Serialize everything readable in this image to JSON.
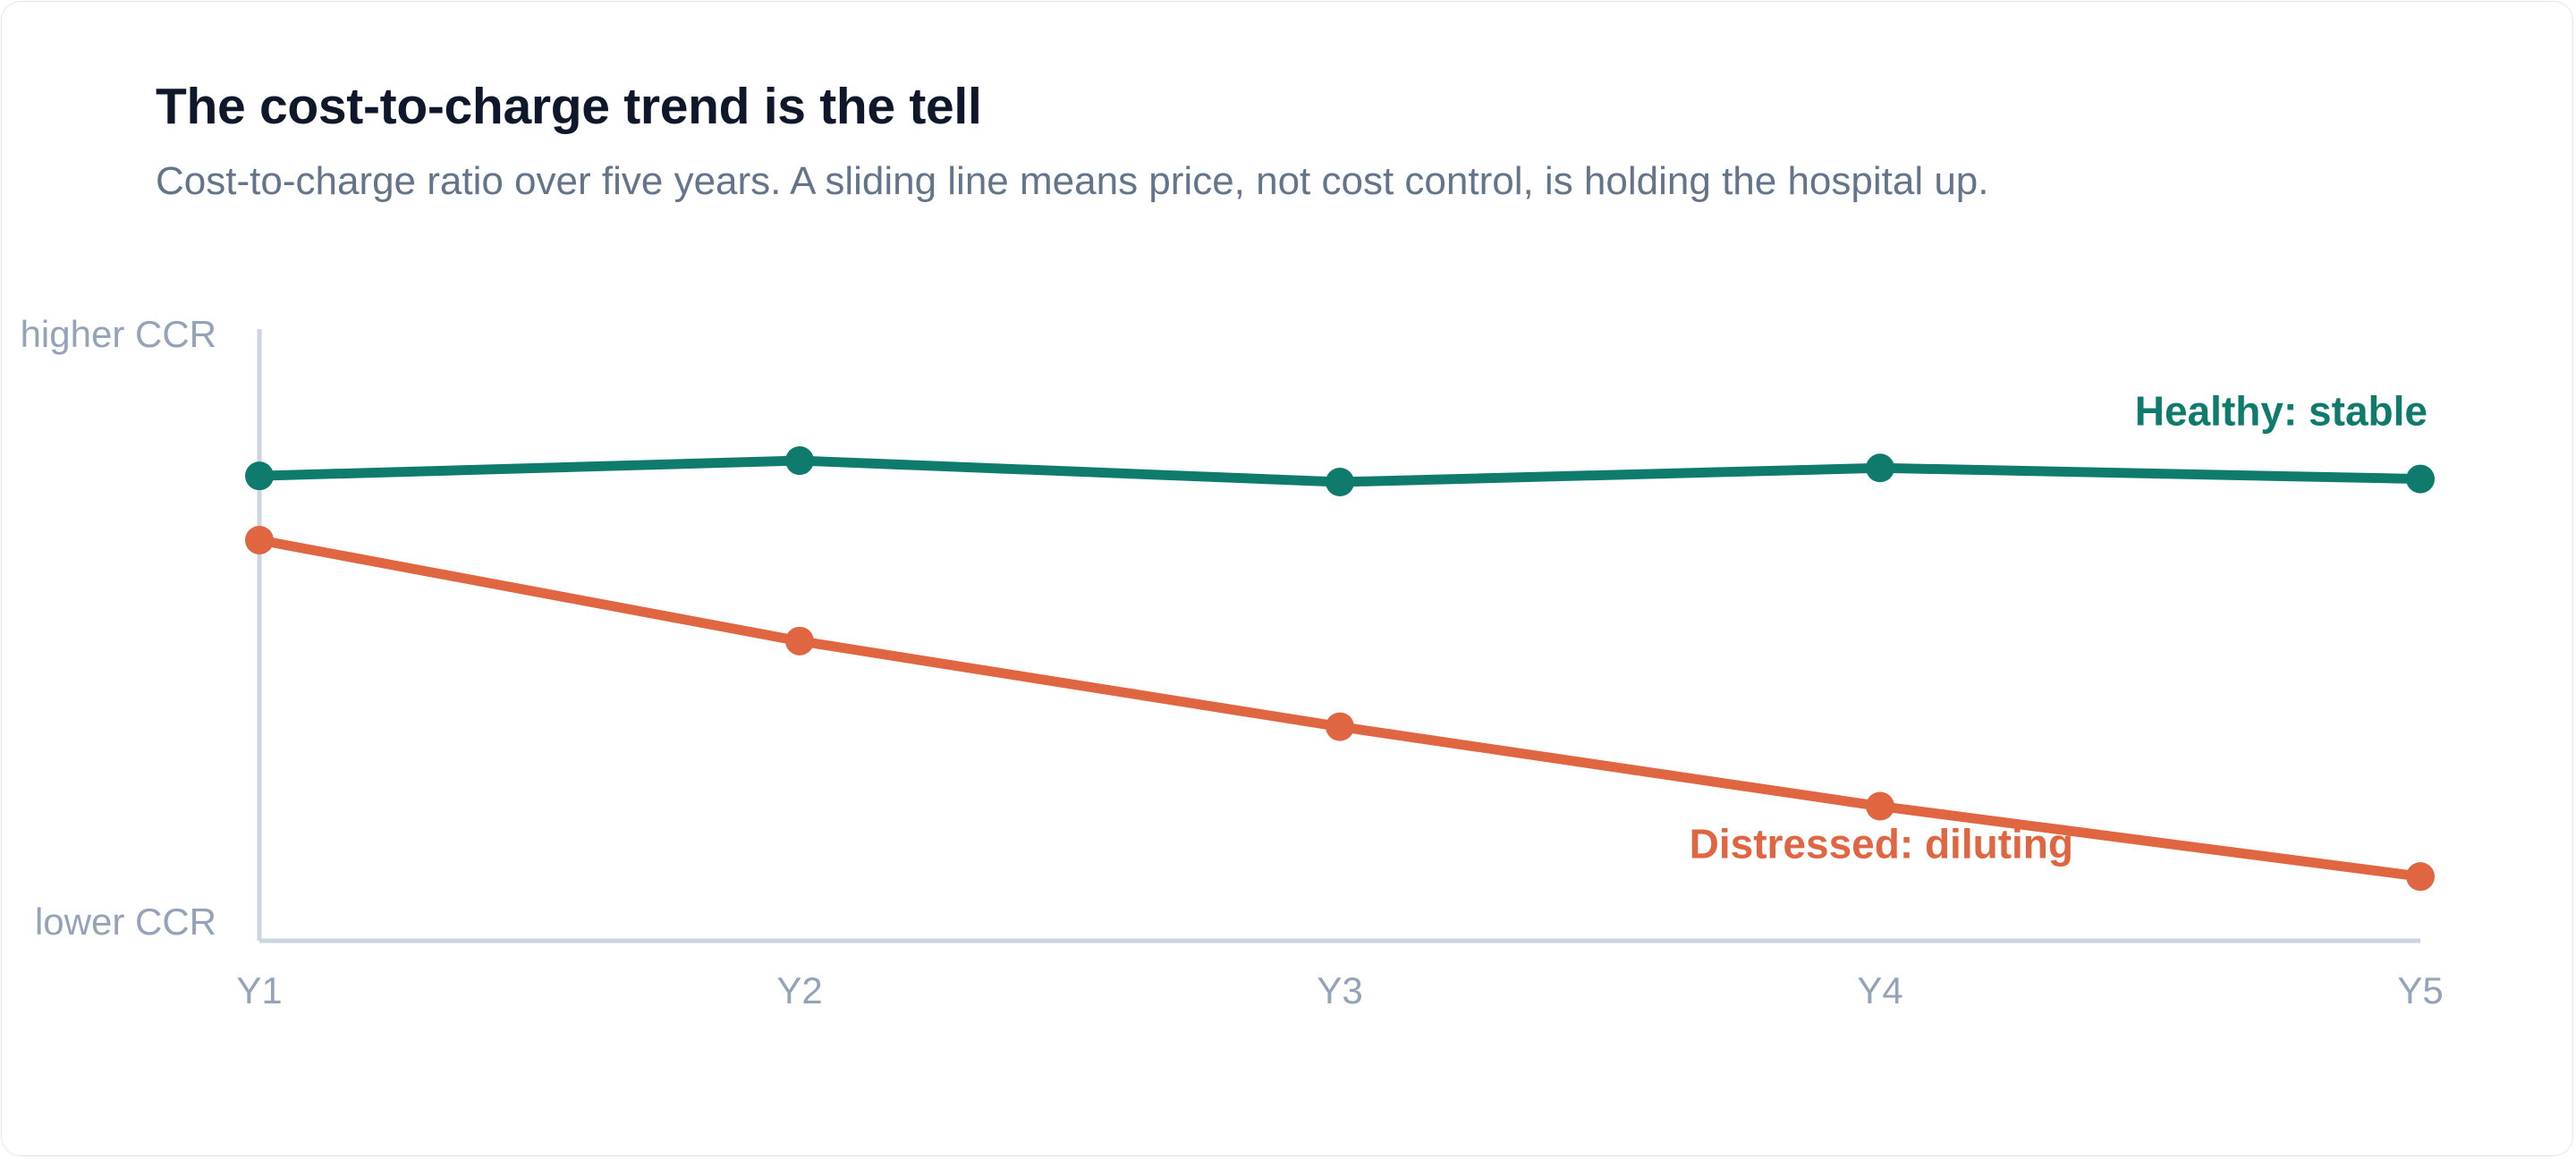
{
  "chart_data": {
    "type": "line",
    "title": "The cost-to-charge trend is the tell",
    "subtitle": "Cost-to-charge ratio over five years. A sliding line means price, not cost control, is holding the hospital up.",
    "xlabel": "",
    "ylabel": "",
    "categories": [
      "Y1",
      "Y2",
      "Y3",
      "Y4",
      "Y5"
    ],
    "y_tick_labels": {
      "top": "higher CCR",
      "bottom": "lower CCR"
    },
    "ylim": [
      0,
      100
    ],
    "grid": false,
    "series": [
      {
        "name": "Healthy: stable",
        "color": "#0f7b6c",
        "values": [
          76,
          78.5,
          75,
          77.3,
          75.5
        ]
      },
      {
        "name": "Distressed: diluting",
        "color": "#e06641",
        "values": [
          65.5,
          49,
          35,
          22,
          10.5
        ]
      }
    ]
  },
  "colors": {
    "axis": "#cbd5e1",
    "axis_text": "#94a3b8",
    "title": "#0f172a",
    "subtitle": "#64748b"
  }
}
